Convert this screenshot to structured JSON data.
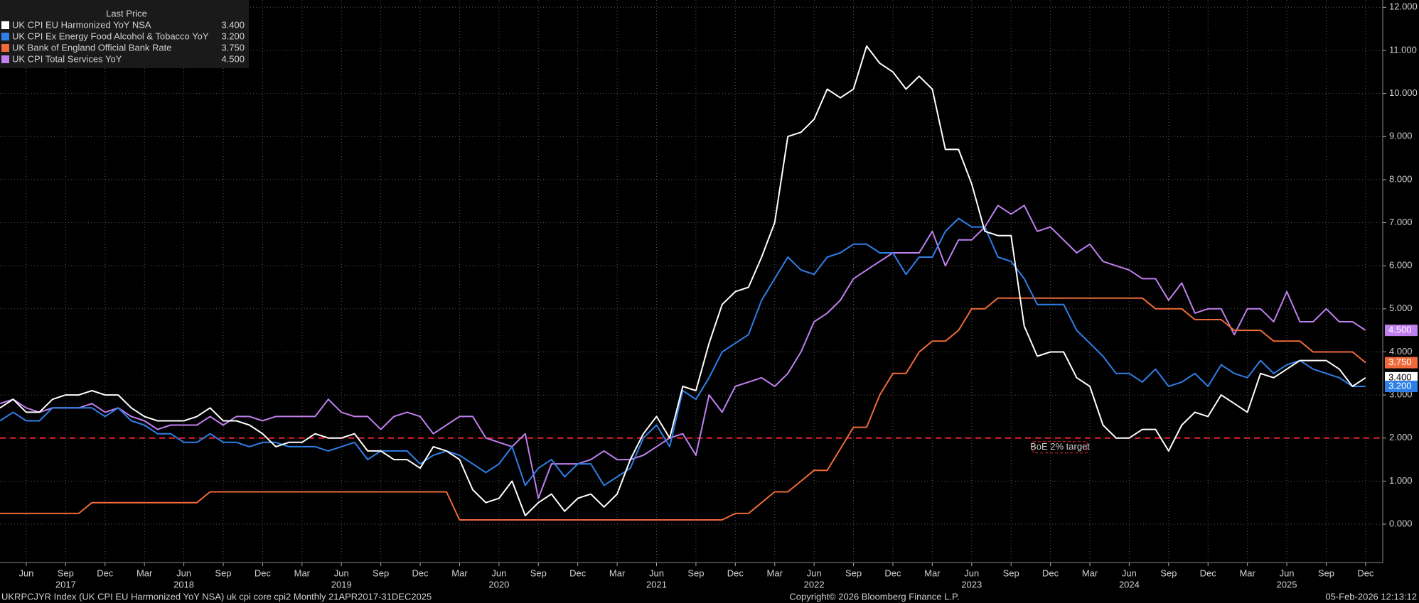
{
  "chart_data": {
    "type": "line",
    "legend_title": "Last Price",
    "x": [
      "2017-04",
      "2017-05",
      "2017-06",
      "2017-07",
      "2017-08",
      "2017-09",
      "2017-10",
      "2017-11",
      "2017-12",
      "2018-01",
      "2018-02",
      "2018-03",
      "2018-04",
      "2018-05",
      "2018-06",
      "2018-07",
      "2018-08",
      "2018-09",
      "2018-10",
      "2018-11",
      "2018-12",
      "2019-01",
      "2019-02",
      "2019-03",
      "2019-04",
      "2019-05",
      "2019-06",
      "2019-07",
      "2019-08",
      "2019-09",
      "2019-10",
      "2019-11",
      "2019-12",
      "2020-01",
      "2020-02",
      "2020-03",
      "2020-04",
      "2020-05",
      "2020-06",
      "2020-07",
      "2020-08",
      "2020-09",
      "2020-10",
      "2020-11",
      "2020-12",
      "2021-01",
      "2021-02",
      "2021-03",
      "2021-04",
      "2021-05",
      "2021-06",
      "2021-07",
      "2021-08",
      "2021-09",
      "2021-10",
      "2021-11",
      "2021-12",
      "2022-01",
      "2022-02",
      "2022-03",
      "2022-04",
      "2022-05",
      "2022-06",
      "2022-07",
      "2022-08",
      "2022-09",
      "2022-10",
      "2022-11",
      "2022-12",
      "2023-01",
      "2023-02",
      "2023-03",
      "2023-04",
      "2023-05",
      "2023-06",
      "2023-07",
      "2023-08",
      "2023-09",
      "2023-10",
      "2023-11",
      "2023-12",
      "2024-01",
      "2024-02",
      "2024-03",
      "2024-04",
      "2024-05",
      "2024-06",
      "2024-07",
      "2024-08",
      "2024-09",
      "2024-10",
      "2024-11",
      "2024-12",
      "2025-01",
      "2025-02",
      "2025-03",
      "2025-04",
      "2025-05",
      "2025-06",
      "2025-07",
      "2025-08",
      "2025-09",
      "2025-10",
      "2025-11",
      "2025-12"
    ],
    "series": [
      {
        "name": "UK CPI EU Harmonized YoY NSA",
        "color": "#ffffff",
        "last_label": "3.400",
        "tag_text_color": "#000000",
        "values": [
          2.7,
          2.9,
          2.6,
          2.6,
          2.9,
          3.0,
          3.0,
          3.1,
          3.0,
          3.0,
          2.7,
          2.5,
          2.4,
          2.4,
          2.4,
          2.5,
          2.7,
          2.4,
          2.4,
          2.3,
          2.1,
          1.8,
          1.9,
          1.9,
          2.1,
          2.0,
          2.0,
          2.1,
          1.7,
          1.7,
          1.5,
          1.5,
          1.3,
          1.8,
          1.7,
          1.5,
          0.8,
          0.5,
          0.6,
          1.0,
          0.2,
          0.5,
          0.7,
          0.3,
          0.6,
          0.7,
          0.4,
          0.7,
          1.5,
          2.1,
          2.5,
          2.0,
          3.2,
          3.1,
          4.2,
          5.1,
          5.4,
          5.5,
          6.2,
          7.0,
          9.0,
          9.1,
          9.4,
          10.1,
          9.9,
          10.1,
          11.1,
          10.7,
          10.5,
          10.1,
          10.4,
          10.1,
          8.7,
          8.7,
          7.9,
          6.8,
          6.7,
          6.7,
          4.6,
          3.9,
          4.0,
          4.0,
          3.4,
          3.2,
          2.3,
          2.0,
          2.0,
          2.2,
          2.2,
          1.7,
          2.3,
          2.6,
          2.5,
          3.0,
          2.8,
          2.6,
          3.5,
          3.4,
          3.6,
          3.8,
          3.8,
          3.8,
          3.6,
          3.2,
          3.4
        ]
      },
      {
        "name": "UK CPI Ex Energy Food Alcohol & Tobacco YoY",
        "color": "#2f7fe8",
        "last_label": "3.200",
        "tag_text_color": "#ffffff",
        "values": [
          2.4,
          2.6,
          2.4,
          2.4,
          2.7,
          2.7,
          2.7,
          2.7,
          2.5,
          2.7,
          2.4,
          2.3,
          2.1,
          2.1,
          1.9,
          1.9,
          2.1,
          1.9,
          1.9,
          1.8,
          1.9,
          1.9,
          1.8,
          1.8,
          1.8,
          1.7,
          1.8,
          1.9,
          1.5,
          1.7,
          1.7,
          1.7,
          1.4,
          1.6,
          1.7,
          1.6,
          1.4,
          1.2,
          1.4,
          1.8,
          0.9,
          1.3,
          1.5,
          1.1,
          1.4,
          1.4,
          0.9,
          1.1,
          1.3,
          2.0,
          2.3,
          1.8,
          3.1,
          2.9,
          3.4,
          4.0,
          4.2,
          4.4,
          5.2,
          5.7,
          6.2,
          5.9,
          5.8,
          6.2,
          6.3,
          6.5,
          6.5,
          6.3,
          6.3,
          5.8,
          6.2,
          6.2,
          6.8,
          7.1,
          6.9,
          6.9,
          6.2,
          6.1,
          5.7,
          5.1,
          5.1,
          5.1,
          4.5,
          4.2,
          3.9,
          3.5,
          3.5,
          3.3,
          3.6,
          3.2,
          3.3,
          3.5,
          3.2,
          3.7,
          3.5,
          3.4,
          3.8,
          3.5,
          3.7,
          3.8,
          3.6,
          3.5,
          3.4,
          3.2,
          3.2
        ]
      },
      {
        "name": "UK Bank of England Official Bank Rate",
        "color": "#f06a3a",
        "last_label": "3.750",
        "tag_text_color": "#ffffff",
        "values": [
          0.25,
          0.25,
          0.25,
          0.25,
          0.25,
          0.25,
          0.25,
          0.5,
          0.5,
          0.5,
          0.5,
          0.5,
          0.5,
          0.5,
          0.5,
          0.5,
          0.75,
          0.75,
          0.75,
          0.75,
          0.75,
          0.75,
          0.75,
          0.75,
          0.75,
          0.75,
          0.75,
          0.75,
          0.75,
          0.75,
          0.75,
          0.75,
          0.75,
          0.75,
          0.75,
          0.1,
          0.1,
          0.1,
          0.1,
          0.1,
          0.1,
          0.1,
          0.1,
          0.1,
          0.1,
          0.1,
          0.1,
          0.1,
          0.1,
          0.1,
          0.1,
          0.1,
          0.1,
          0.1,
          0.1,
          0.1,
          0.25,
          0.25,
          0.5,
          0.75,
          0.75,
          1.0,
          1.25,
          1.25,
          1.75,
          2.25,
          2.25,
          3.0,
          3.5,
          3.5,
          4.0,
          4.25,
          4.25,
          4.5,
          5.0,
          5.0,
          5.25,
          5.25,
          5.25,
          5.25,
          5.25,
          5.25,
          5.25,
          5.25,
          5.25,
          5.25,
          5.25,
          5.25,
          5.0,
          5.0,
          5.0,
          4.75,
          4.75,
          4.75,
          4.5,
          4.5,
          4.5,
          4.25,
          4.25,
          4.25,
          4.0,
          4.0,
          4.0,
          4.0,
          3.75
        ]
      },
      {
        "name": "UK CPI Total Services YoY",
        "color": "#c080f0",
        "last_label": "4.500",
        "tag_text_color": "#ffffff",
        "values": [
          2.8,
          2.9,
          2.7,
          2.6,
          2.7,
          2.7,
          2.7,
          2.8,
          2.6,
          2.7,
          2.5,
          2.4,
          2.2,
          2.3,
          2.3,
          2.3,
          2.5,
          2.3,
          2.5,
          2.5,
          2.4,
          2.5,
          2.5,
          2.5,
          2.5,
          2.9,
          2.6,
          2.5,
          2.5,
          2.2,
          2.5,
          2.6,
          2.5,
          2.1,
          2.3,
          2.5,
          2.5,
          2.0,
          1.9,
          1.8,
          2.1,
          0.6,
          1.4,
          1.4,
          1.4,
          1.5,
          1.7,
          1.5,
          1.5,
          1.6,
          1.8,
          2.0,
          2.1,
          1.6,
          3.0,
          2.6,
          3.2,
          3.3,
          3.4,
          3.2,
          3.5,
          4.0,
          4.7,
          4.9,
          5.2,
          5.7,
          5.9,
          6.1,
          6.3,
          6.3,
          6.3,
          6.8,
          6.0,
          6.6,
          6.6,
          6.9,
          7.4,
          7.2,
          7.4,
          6.8,
          6.9,
          6.6,
          6.3,
          6.5,
          6.1,
          6.0,
          5.9,
          5.7,
          5.7,
          5.2,
          5.6,
          4.9,
          5.0,
          5.0,
          4.4,
          5.0,
          5.0,
          4.7,
          5.4,
          4.7,
          4.7,
          5.0,
          4.7,
          4.7,
          4.5
        ]
      }
    ],
    "reference_line": {
      "value": 2,
      "label": "BoE 2% target",
      "color": "#e8202a"
    },
    "ylim": [
      -0.89,
      12.17
    ],
    "yticks": [
      {
        "value": 0,
        "label": "0.000"
      },
      {
        "value": 1,
        "label": "1.000"
      },
      {
        "value": 2,
        "label": "2.000"
      },
      {
        "value": 3,
        "label": "3.000"
      },
      {
        "value": 4,
        "label": "4.000"
      },
      {
        "value": 5,
        "label": "5.000"
      },
      {
        "value": 6,
        "label": "6.000"
      },
      {
        "value": 7,
        "label": "7.000"
      },
      {
        "value": 8,
        "label": "8.000"
      },
      {
        "value": 9,
        "label": "9.000"
      },
      {
        "value": 10,
        "label": "10.000"
      },
      {
        "value": 11,
        "label": "11.000"
      },
      {
        "value": 12,
        "label": "12.000"
      }
    ],
    "xticks": [
      {
        "value": "2017-06",
        "label": "Jun"
      },
      {
        "value": "2017-09",
        "label": "Sep"
      },
      {
        "value": "2017-12",
        "label": "Dec"
      },
      {
        "value": "2018-03",
        "label": "Mar"
      },
      {
        "value": "2018-06",
        "label": "Jun"
      },
      {
        "value": "2018-09",
        "label": "Sep"
      },
      {
        "value": "2018-12",
        "label": "Dec"
      },
      {
        "value": "2019-03",
        "label": "Mar"
      },
      {
        "value": "2019-06",
        "label": "Jun"
      },
      {
        "value": "2019-09",
        "label": "Sep"
      },
      {
        "value": "2019-12",
        "label": "Dec"
      },
      {
        "value": "2020-03",
        "label": "Mar"
      },
      {
        "value": "2020-06",
        "label": "Jun"
      },
      {
        "value": "2020-09",
        "label": "Sep"
      },
      {
        "value": "2020-12",
        "label": "Dec"
      },
      {
        "value": "2021-03",
        "label": "Mar"
      },
      {
        "value": "2021-06",
        "label": "Jun"
      },
      {
        "value": "2021-09",
        "label": "Sep"
      },
      {
        "value": "2021-12",
        "label": "Dec"
      },
      {
        "value": "2022-03",
        "label": "Mar"
      },
      {
        "value": "2022-06",
        "label": "Jun"
      },
      {
        "value": "2022-09",
        "label": "Sep"
      },
      {
        "value": "2022-12",
        "label": "Dec"
      },
      {
        "value": "2023-03",
        "label": "Mar"
      },
      {
        "value": "2023-06",
        "label": "Jun"
      },
      {
        "value": "2023-09",
        "label": "Sep"
      },
      {
        "value": "2023-12",
        "label": "Dec"
      },
      {
        "value": "2024-03",
        "label": "Mar"
      },
      {
        "value": "2024-06",
        "label": "Jun"
      },
      {
        "value": "2024-09",
        "label": "Sep"
      },
      {
        "value": "2024-12",
        "label": "Dec"
      },
      {
        "value": "2025-03",
        "label": "Mar"
      },
      {
        "value": "2025-06",
        "label": "Jun"
      },
      {
        "value": "2025-09",
        "label": "Sep"
      },
      {
        "value": "2025-12",
        "label": "Dec"
      }
    ],
    "x_groups": [
      {
        "value": "2017-09",
        "label": "2017"
      },
      {
        "value": "2018-06",
        "label": "2018"
      },
      {
        "value": "2019-06",
        "label": "2019"
      },
      {
        "value": "2020-06",
        "label": "2020"
      },
      {
        "value": "2021-06",
        "label": "2021"
      },
      {
        "value": "2022-06",
        "label": "2022"
      },
      {
        "value": "2023-06",
        "label": "2023"
      },
      {
        "value": "2024-06",
        "label": "2024"
      },
      {
        "value": "2025-06",
        "label": "2025"
      }
    ],
    "grid": true,
    "footer": {
      "source": "UKRPCJYR Index (UK CPI EU Harmonized YoY NSA) uk cpi core cpi2 Monthly 21APR2017-31DEC2025",
      "copyright": "Copyright© 2026 Bloomberg Finance L.P.",
      "timestamp": "05-Feb-2026 12:13:12"
    }
  }
}
